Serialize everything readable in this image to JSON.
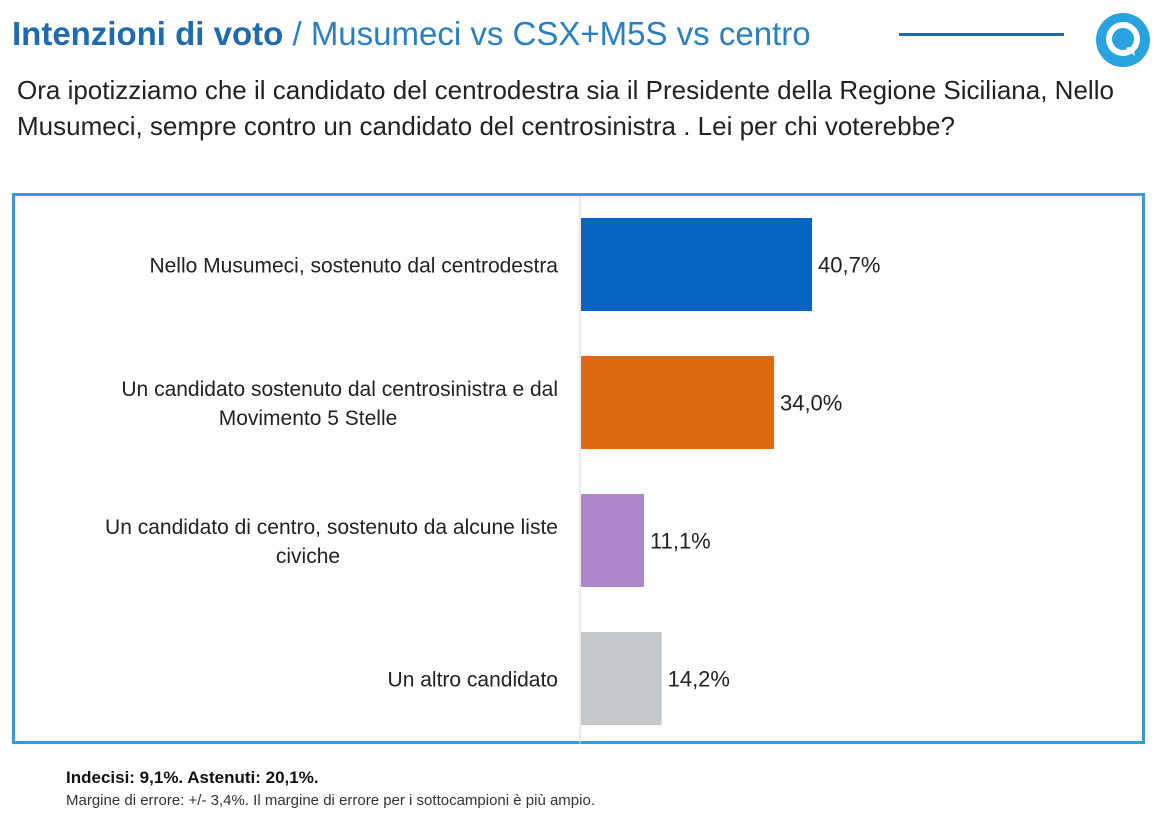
{
  "header": {
    "title_main": "Intenzioni di voto",
    "title_sub": " / Musumeci vs CSX+M5S vs centro"
  },
  "question": "Ora ipotizziamo che il candidato del centrodestra sia il Presidente della Regione Siciliana, Nello Musumeci, sempre contro un candidato del centrosinistra . Lei per chi voterebbe?",
  "chart_data": {
    "type": "bar",
    "orientation": "horizontal",
    "categories": [
      [
        "Nello Musumeci, sostenuto dal centrodestra"
      ],
      [
        "Un candidato sostenuto dal centrosinistra e dal",
        "Movimento 5 Stelle"
      ],
      [
        "Un candidato di centro, sostenuto da alcune liste",
        "civiche"
      ],
      [
        "Un altro candidato"
      ]
    ],
    "values": [
      40.7,
      34.0,
      11.1,
      14.2
    ],
    "value_labels": [
      "40,7%",
      "34,0%",
      "11,1%",
      "14,2%"
    ],
    "colors": [
      "#0563c1",
      "#dd6a10",
      "#ae86cc",
      "#c5c8cb"
    ],
    "xlim": [
      0,
      100
    ],
    "grid": false,
    "legend": "none"
  },
  "footnotes": {
    "line1": "Indecisi: 9,1%. Astenuti: 20,1%.",
    "line2": "Margine di errore: +/- 3,4%. Il margine di errore per i sottocampioni è più ampio."
  },
  "colors": {
    "title": "#1f6bb0",
    "border": "#3a9ad9",
    "logo": "#29a3e0"
  },
  "icons": {
    "logo": "quorum-q-logo"
  }
}
